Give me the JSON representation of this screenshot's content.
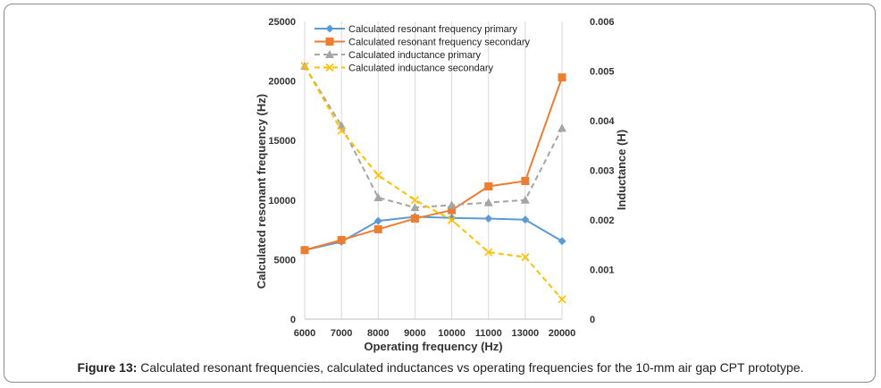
{
  "caption": {
    "label": "Figure 13:",
    "text": " Calculated resonant frequencies, calculated inductances vs operating frequencies for the 10-mm air gap CPT prototype."
  },
  "chart_data": {
    "type": "line",
    "xlabel": "Operating frequency (Hz)",
    "ylabel": "Calculated resonant frequency (Hz)",
    "y2label": "Inductance (H)",
    "categories": [
      "6000",
      "7000",
      "8000",
      "9000",
      "10000",
      "11000",
      "13000",
      "20000"
    ],
    "ylim": [
      0,
      25000
    ],
    "yticks": [
      "0",
      "5000",
      "10000",
      "15000",
      "20000",
      "25000"
    ],
    "y2lim": [
      0,
      0.006
    ],
    "y2ticks": [
      "0",
      "0.001",
      "0.002",
      "0.003",
      "0.004",
      "0.005",
      "0.006"
    ],
    "grid": "vertical",
    "legend_position": "top-left",
    "series": [
      {
        "name": "Calculated resonant frequency primary",
        "axis": "left",
        "color": "#5b9bd5",
        "marker": "diamond",
        "dash": false,
        "values": [
          5800,
          6500,
          8250,
          8600,
          8500,
          8450,
          8350,
          6550
        ]
      },
      {
        "name": "Calculated resonant frequency secondary",
        "axis": "left",
        "color": "#ed7d31",
        "marker": "square",
        "dash": false,
        "values": [
          5800,
          6650,
          7550,
          8450,
          9150,
          11150,
          11600,
          20300
        ]
      },
      {
        "name": "Calculated inductance primary",
        "axis": "right",
        "color": "#a5a5a5",
        "marker": "triangle",
        "dash": true,
        "values": [
          0.0051,
          0.0039,
          0.00245,
          0.00225,
          0.0023,
          0.00235,
          0.0024,
          0.00385
        ]
      },
      {
        "name": "Calculated inductance secondary",
        "axis": "right",
        "color": "#ffc000",
        "marker": "x",
        "dash": true,
        "values": [
          0.0051,
          0.0038,
          0.0029,
          0.0024,
          0.002,
          0.00135,
          0.00125,
          0.0004
        ]
      }
    ]
  }
}
